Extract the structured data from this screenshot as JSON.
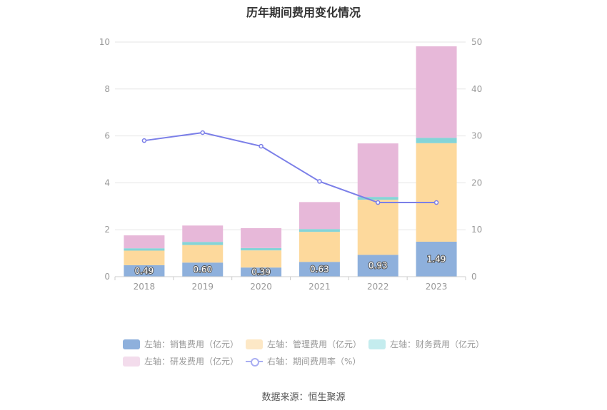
{
  "title": "历年期间费用变化情况",
  "source": "数据来源：恒生聚源",
  "chart_data": {
    "type": "bar",
    "stacked": true,
    "categories": [
      "2018",
      "2019",
      "2020",
      "2021",
      "2022",
      "2023"
    ],
    "left_axis": {
      "min": 0,
      "max": 10,
      "ticks": [
        "0",
        "2",
        "4",
        "6",
        "8",
        "10"
      ]
    },
    "right_axis": {
      "min": 0,
      "max": 50,
      "ticks": [
        "0",
        "10",
        "20",
        "30",
        "40",
        "50"
      ]
    },
    "grid": true,
    "legend_position": "bottom",
    "series": [
      {
        "name": "左轴：销售费用（亿元）",
        "type": "bar",
        "axis": "left",
        "color": "#8eb0dc",
        "values": [
          0.49,
          0.6,
          0.39,
          0.63,
          0.93,
          1.49
        ],
        "data_labels": [
          "0.49",
          "0.60",
          "0.39",
          "0.63",
          "0.93",
          "1.49"
        ]
      },
      {
        "name": "左轴：管理费用（亿元）",
        "type": "bar",
        "axis": "left",
        "color": "#fdd99c",
        "values": [
          0.62,
          0.75,
          0.73,
          1.28,
          2.35,
          4.2
        ]
      },
      {
        "name": "左轴：财务费用（亿元）",
        "type": "bar",
        "axis": "left",
        "color": "#84d4d7",
        "values": [
          0.1,
          0.13,
          0.1,
          0.12,
          0.12,
          0.23
        ]
      },
      {
        "name": "左轴：研发费用（亿元）",
        "type": "bar",
        "axis": "left",
        "color": "#e7b8d9",
        "values": [
          0.55,
          0.7,
          0.85,
          1.15,
          2.28,
          3.9
        ]
      },
      {
        "name": "右轴：期间费用率（%）",
        "type": "line",
        "axis": "right",
        "color": "#7b7fe8",
        "values": [
          29.0,
          30.7,
          27.8,
          20.3,
          15.8,
          15.8
        ]
      }
    ]
  }
}
